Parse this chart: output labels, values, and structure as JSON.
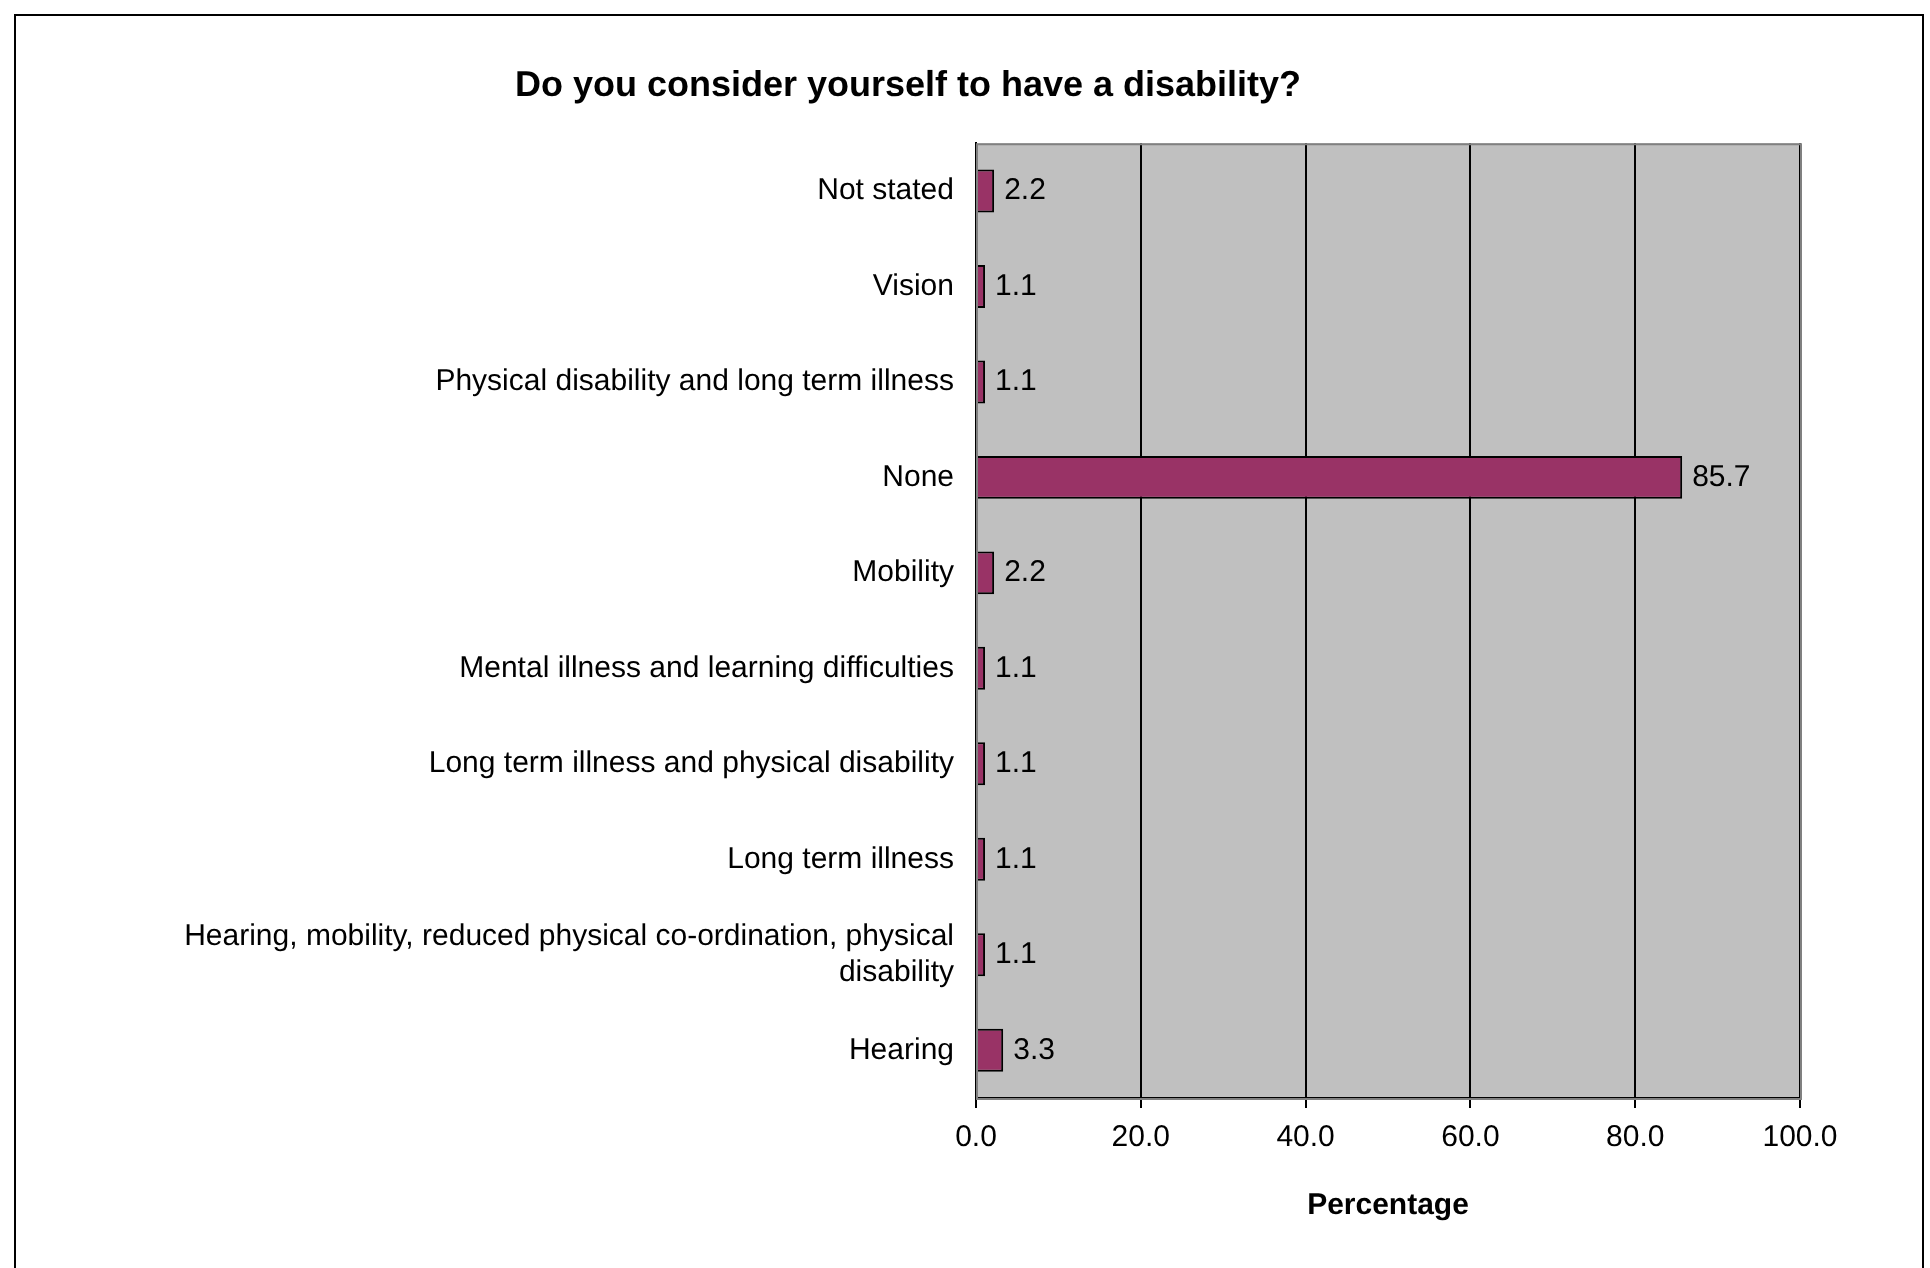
{
  "chart_data": {
    "type": "bar",
    "orientation": "horizontal",
    "title": "Do you consider yourself to have a disability?",
    "xlabel": "Percentage",
    "categories": [
      "Not stated",
      "Vision",
      "Physical disability and long term illness",
      "None",
      "Mobility",
      "Mental illness and learning difficulties",
      "Long term illness and physical disability",
      "Long term illness",
      "Hearing, mobility, reduced physical co-ordination, physical disability",
      "Hearing"
    ],
    "values": [
      2.2,
      1.1,
      1.1,
      85.7,
      2.2,
      1.1,
      1.1,
      1.1,
      1.1,
      3.3
    ],
    "color": "#993366",
    "xlim": [
      0,
      100
    ],
    "xticks": [
      {
        "value": 0,
        "label": "0.0"
      },
      {
        "value": 20,
        "label": "20.0"
      },
      {
        "value": 40,
        "label": "40.0"
      },
      {
        "value": 60,
        "label": "60.0"
      },
      {
        "value": 80,
        "label": "80.0"
      },
      {
        "value": 100,
        "label": "100.0"
      }
    ],
    "grid": "x",
    "data_labels": true,
    "legend": false
  }
}
